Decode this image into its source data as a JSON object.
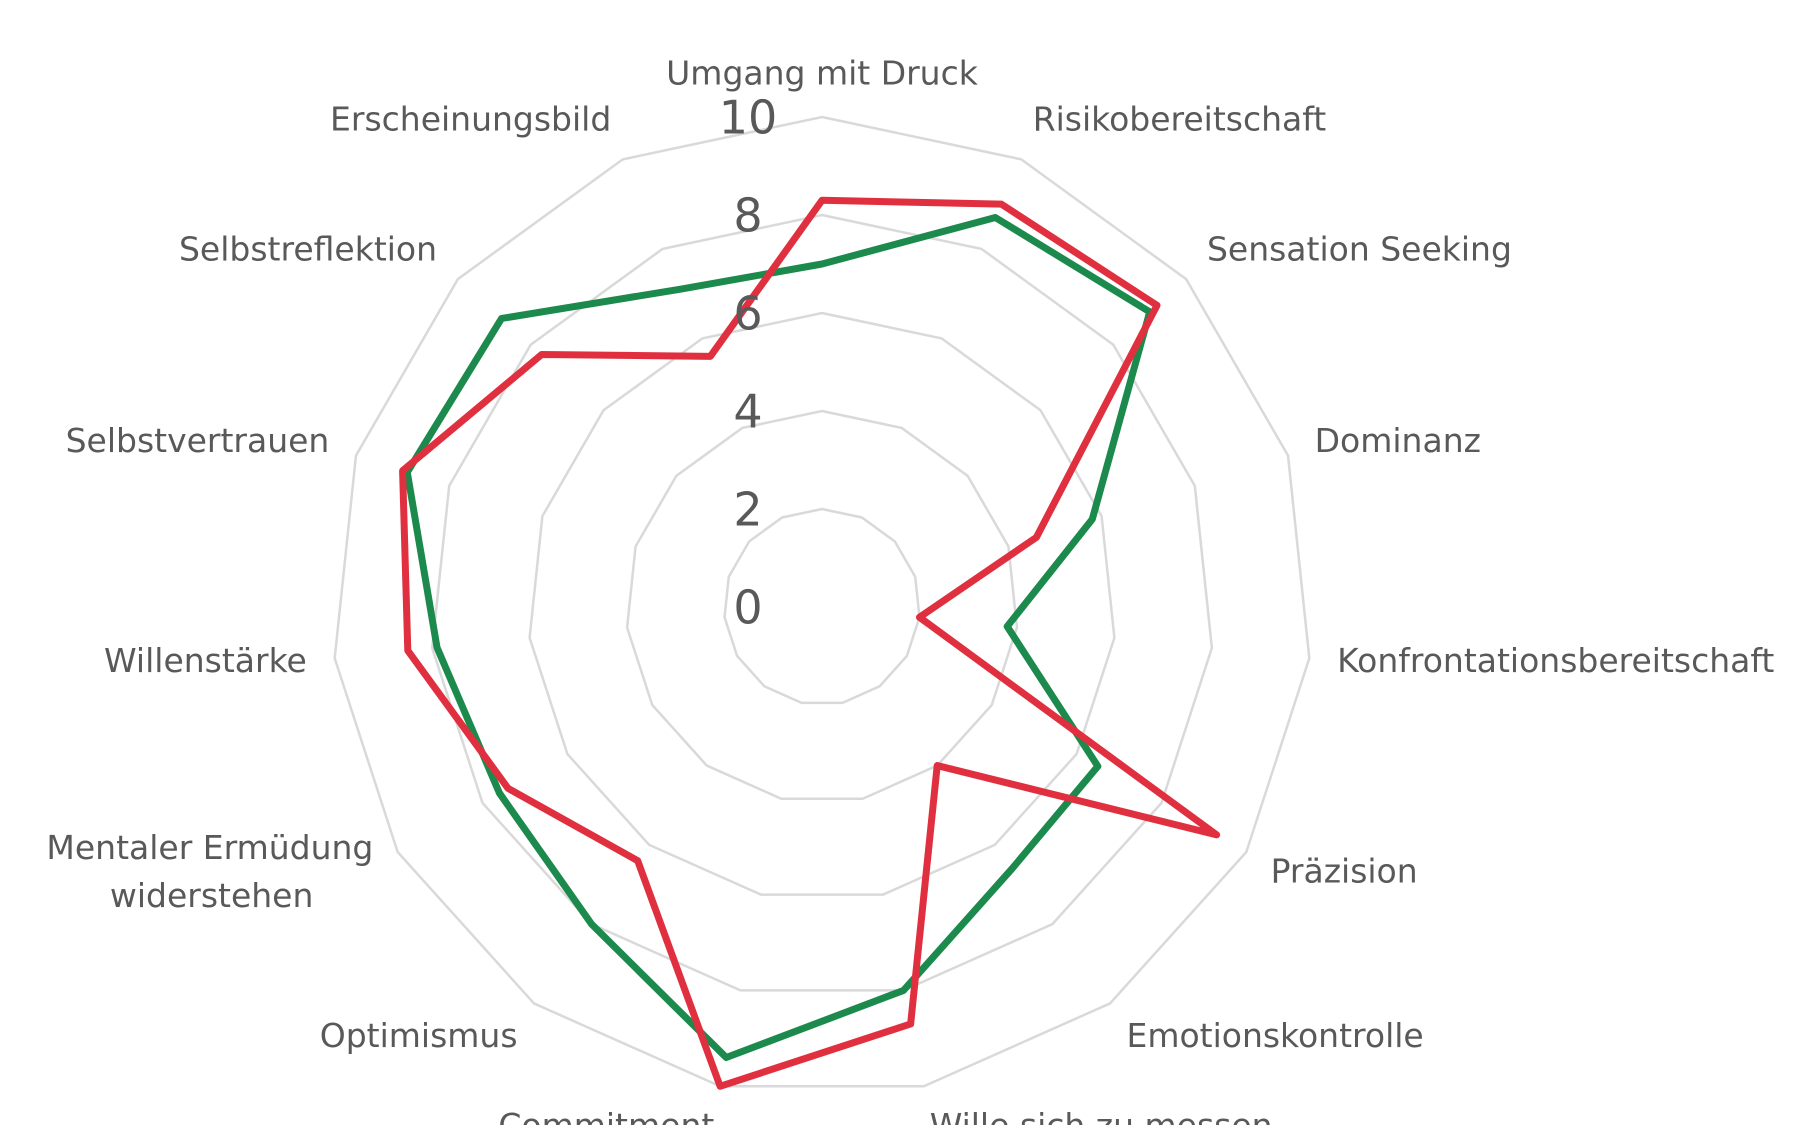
{
  "chart_data": {
    "type": "radar",
    "categories": [
      "Umgang mit Druck",
      "Risikobereitschaft",
      "Sensation Seeking",
      "Dominanz",
      "Konfrontationsbereitschaft",
      "Präzision",
      "Emotionskontrolle",
      "Wille sich zu messen",
      "Commitment",
      "Optimismus",
      "Mentaler Ermüdung\nwiderstehen",
      "Willenstärke",
      "Selbstvertrauen",
      "Selbstreflektion",
      "Erscheinungsbild"
    ],
    "series": [
      {
        "color": "#1b8a4c",
        "values": [
          7.0,
          8.7,
          9.0,
          5.8,
          3.8,
          6.5,
          6.6,
          8.0,
          9.4,
          8.0,
          7.6,
          7.9,
          8.9,
          8.8,
          7.1
        ]
      },
      {
        "color": "#e0303f",
        "values": [
          8.3,
          9.0,
          9.2,
          4.6,
          2.0,
          9.3,
          4.0,
          8.7,
          10.0,
          6.4,
          7.4,
          8.5,
          9.0,
          7.7,
          5.6
        ]
      }
    ],
    "ylim": [
      0,
      10
    ],
    "yticks": [
      0,
      2,
      4,
      6,
      8,
      10
    ],
    "grid": true
  }
}
